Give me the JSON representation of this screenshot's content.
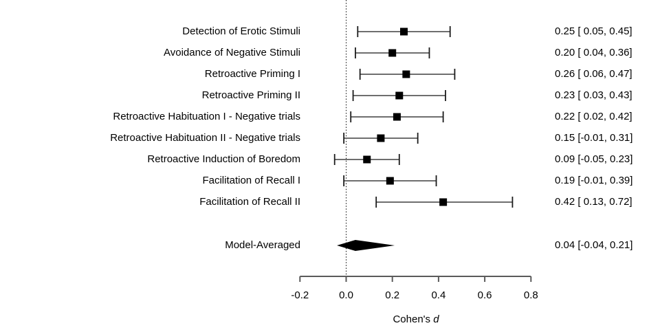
{
  "chart_data": {
    "type": "forest",
    "title": "",
    "xlabel": "Cohen's d",
    "xlabel_prefix": "Cohen's ",
    "xlabel_italic": "d",
    "xlim": [
      -0.2,
      0.8
    ],
    "xticks": [
      -0.2,
      0.0,
      0.2,
      0.4,
      0.6,
      0.8
    ],
    "xtick_labels": [
      "-0.2",
      "0.0",
      "0.2",
      "0.4",
      "0.6",
      "0.8"
    ],
    "reference_line": 0.0,
    "grid": false,
    "legend": "none",
    "colors": {
      "marker": "#000000",
      "diamond": "#000000",
      "ci_line": "#6e6e6e",
      "cap_line": "#1a1a1a",
      "axis_line": "#5a5a5a",
      "reference_line": "#000000",
      "text": "#000000",
      "background": "#ffffff"
    },
    "studies": [
      {
        "label": "Detection of Erotic Stimuli",
        "estimate": 0.25,
        "ci_lower": 0.05,
        "ci_upper": 0.45,
        "value_text": "0.25 [ 0.05, 0.45]"
      },
      {
        "label": "Avoidance of Negative Stimuli",
        "estimate": 0.2,
        "ci_lower": 0.04,
        "ci_upper": 0.36,
        "value_text": "0.20 [ 0.04, 0.36]"
      },
      {
        "label": "Retroactive Priming I",
        "estimate": 0.26,
        "ci_lower": 0.06,
        "ci_upper": 0.47,
        "value_text": "0.26 [ 0.06, 0.47]"
      },
      {
        "label": "Retroactive Priming II",
        "estimate": 0.23,
        "ci_lower": 0.03,
        "ci_upper": 0.43,
        "value_text": "0.23 [ 0.03, 0.43]"
      },
      {
        "label": "Retroactive Habituation I - Negative trials",
        "estimate": 0.22,
        "ci_lower": 0.02,
        "ci_upper": 0.42,
        "value_text": "0.22 [ 0.02, 0.42]"
      },
      {
        "label": "Retroactive Habituation II - Negative trials",
        "estimate": 0.15,
        "ci_lower": -0.01,
        "ci_upper": 0.31,
        "value_text": "0.15 [-0.01, 0.31]"
      },
      {
        "label": "Retroactive Induction of Boredom",
        "estimate": 0.09,
        "ci_lower": -0.05,
        "ci_upper": 0.23,
        "value_text": "0.09 [-0.05, 0.23]"
      },
      {
        "label": "Facilitation of Recall I",
        "estimate": 0.19,
        "ci_lower": -0.01,
        "ci_upper": 0.39,
        "value_text": "0.19 [-0.01, 0.39]"
      },
      {
        "label": "Facilitation of Recall II",
        "estimate": 0.42,
        "ci_lower": 0.13,
        "ci_upper": 0.72,
        "value_text": "0.42 [ 0.13, 0.72]"
      }
    ],
    "summary": {
      "label": "Model-Averaged",
      "estimate": 0.04,
      "ci_lower": -0.04,
      "ci_upper": 0.21,
      "value_text": "0.04 [-0.04, 0.21]",
      "marker": "diamond"
    }
  }
}
